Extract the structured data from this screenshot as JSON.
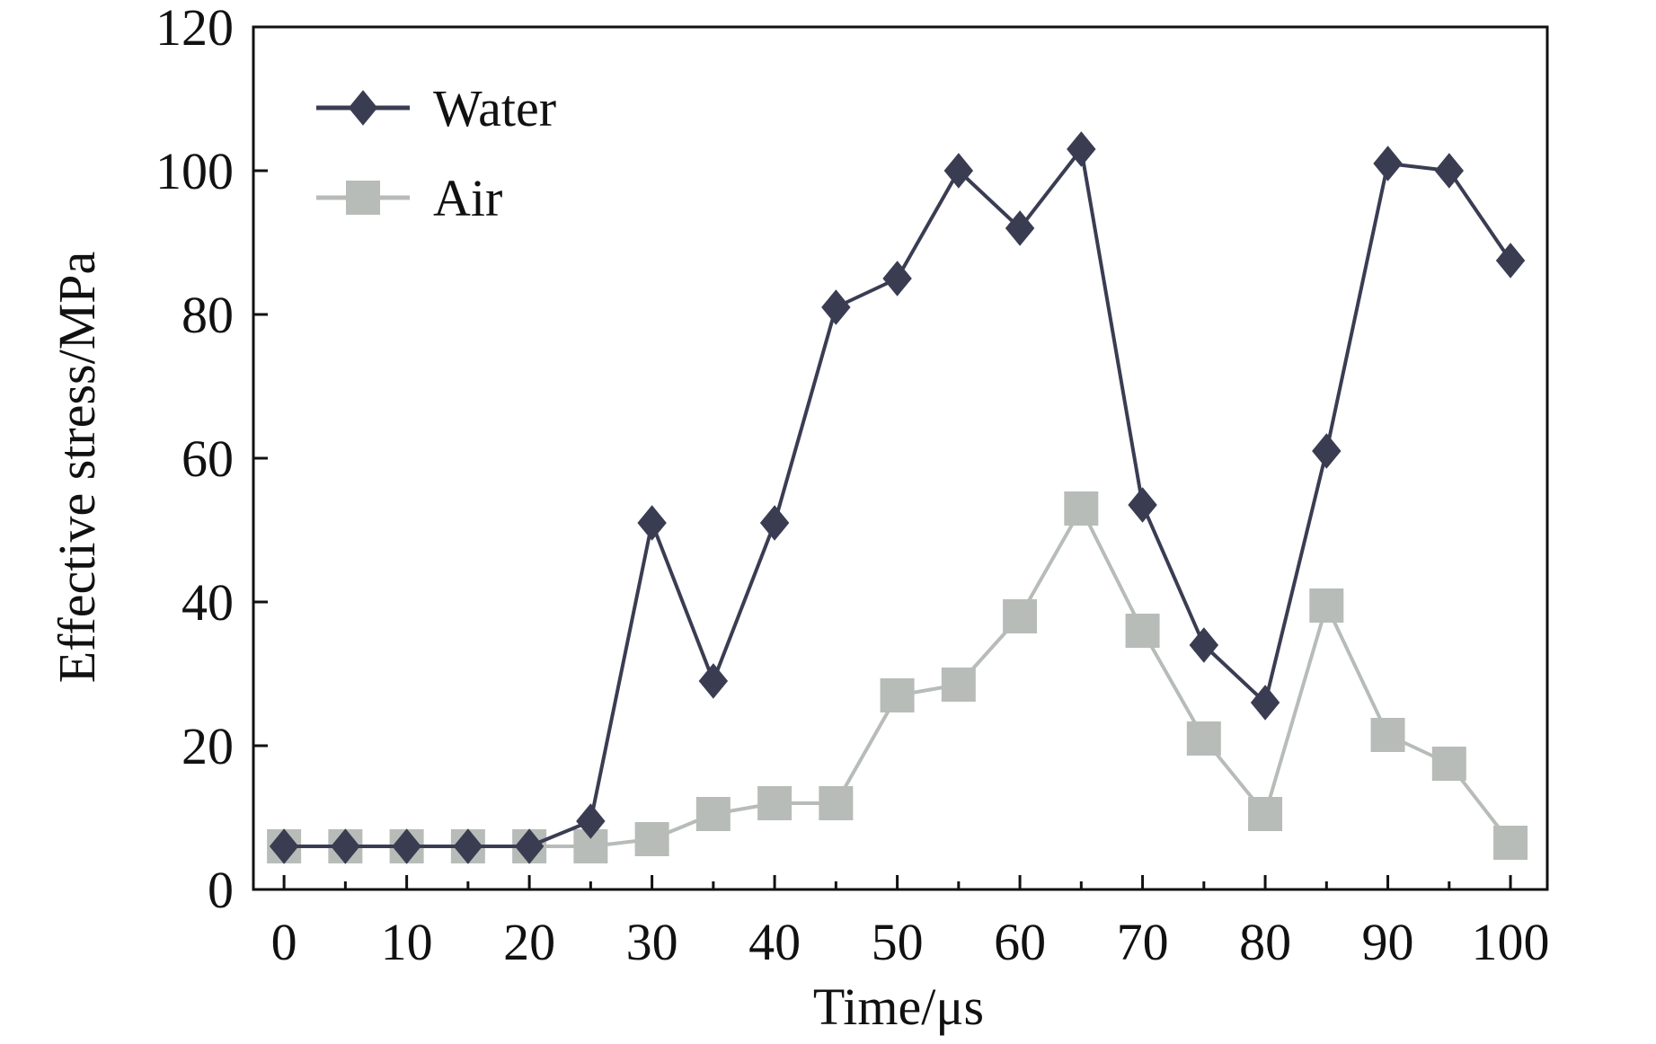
{
  "chart_data": {
    "type": "line",
    "title": "",
    "xlabel": "Time/μs",
    "ylabel": "Effective stress/MPa",
    "xlim": [
      -2.5,
      103
    ],
    "ylim": [
      0,
      120
    ],
    "xticks": [
      0,
      10,
      20,
      30,
      40,
      50,
      60,
      70,
      80,
      90,
      100
    ],
    "yticks": [
      0,
      20,
      40,
      60,
      80,
      100,
      120
    ],
    "minor_xticks": [
      5,
      15,
      25,
      35,
      45,
      55,
      65,
      75,
      85,
      95
    ],
    "grid": false,
    "legend_position": "top-left",
    "x": [
      0,
      5,
      10,
      15,
      20,
      25,
      30,
      35,
      40,
      45,
      50,
      55,
      60,
      65,
      70,
      75,
      80,
      85,
      90,
      95,
      100
    ],
    "series": [
      {
        "name": "Water",
        "marker": "diamond",
        "color": "#3a3d52",
        "values": [
          6,
          6,
          6,
          6,
          6,
          9.5,
          51,
          29,
          51,
          81,
          85,
          100,
          92,
          103,
          53.5,
          34,
          26,
          61,
          101,
          100,
          87.5
        ]
      },
      {
        "name": "Air",
        "marker": "square",
        "color": "#b7bcb8",
        "values": [
          6,
          6,
          6,
          6,
          6,
          6,
          7,
          10.5,
          12,
          12,
          27,
          28.5,
          38,
          53,
          36,
          21,
          10.5,
          39.5,
          21.5,
          17.5,
          6.5
        ]
      }
    ]
  }
}
